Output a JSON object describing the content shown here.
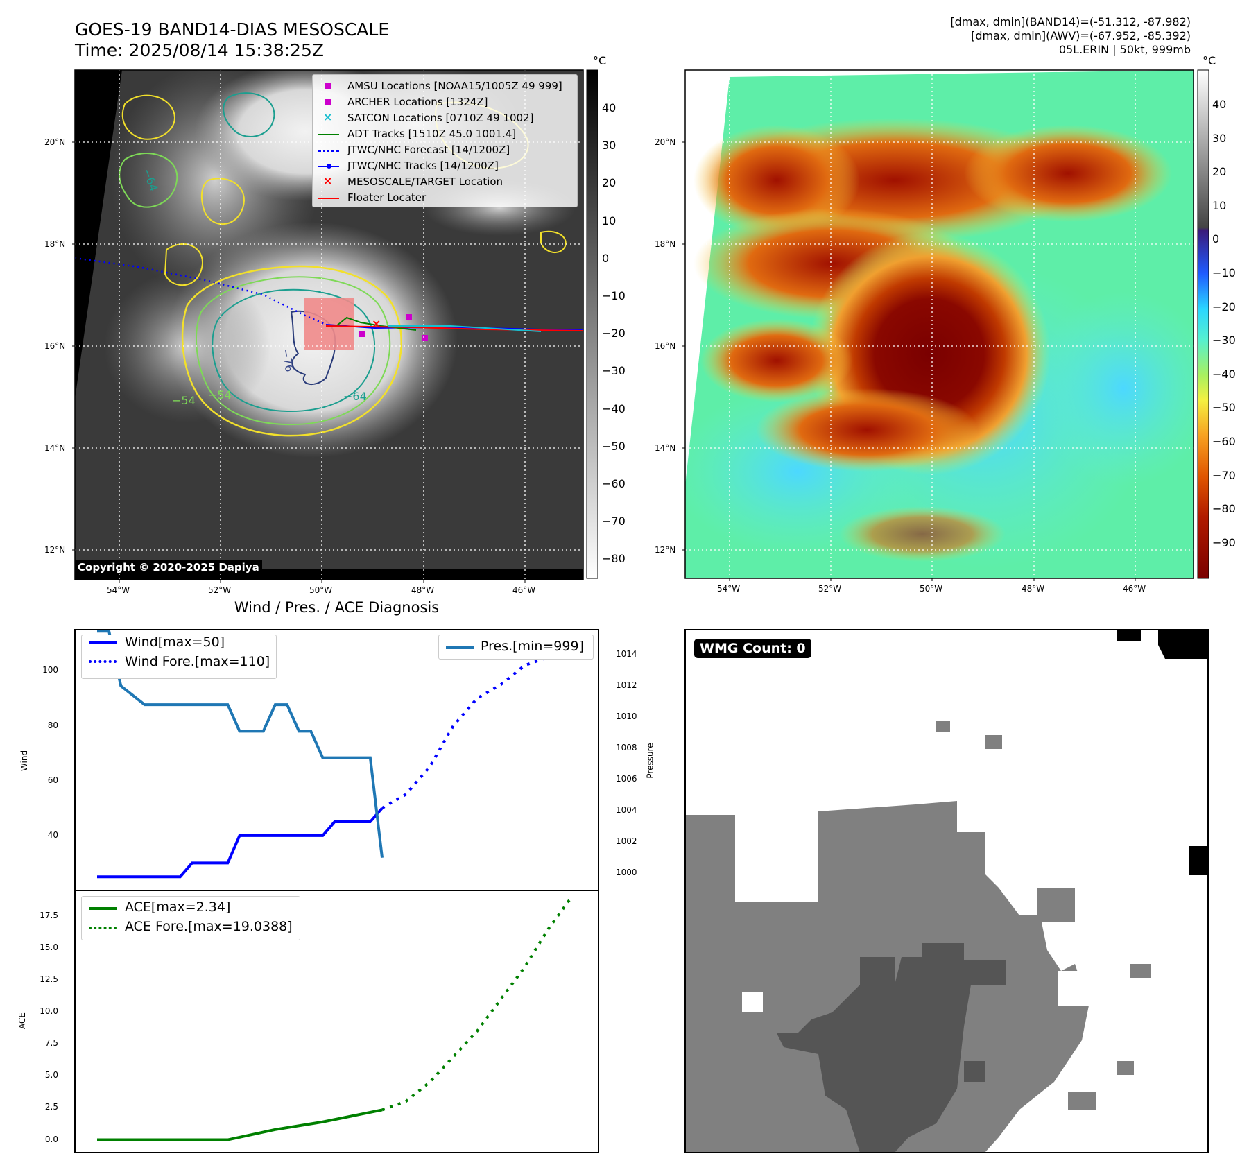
{
  "header": {
    "title_line1": "GOES-19 BAND14-DIAS MESOSCALE",
    "title_line2": "Time: 2025/08/14 15:38:25Z",
    "info_line1": "[dmax, dmin](BAND14)=(-51.312, -87.982)",
    "info_line2": "[dmax, dmin](AWV)=(-67.952, -85.392)",
    "info_line3": "05L.ERIN | 50kt, 999mb"
  },
  "map_axes": {
    "lat_ticks": [
      "20°N",
      "18°N",
      "16°N",
      "14°N",
      "12°N"
    ],
    "lon_ticks": [
      "54°W",
      "52°W",
      "50°W",
      "48°W",
      "46°W"
    ]
  },
  "ir_panel": {
    "colorbar_unit": "°C",
    "colorbar_ticks": [
      "40",
      "30",
      "20",
      "10",
      "0",
      "−10",
      "−20",
      "−30",
      "−40",
      "−50",
      "−60",
      "−70",
      "−80"
    ],
    "contour_labels": [
      "−76",
      "−64",
      "−54",
      "−54",
      "−64"
    ],
    "copyright": "Copyright © 2020-2025 Dapiya",
    "legend": [
      {
        "label": "AMSU Locations [NOAA15/1005Z 49 999]",
        "color": "#cc00cc",
        "marker": "square"
      },
      {
        "label": "ARCHER Locations [1324Z]",
        "color": "#cc00cc",
        "marker": "square"
      },
      {
        "label": "SATCON Locations [0710Z 49 1002]",
        "color": "#17becf",
        "marker": "x"
      },
      {
        "label": "ADT Tracks [1510Z 45.0 1001.4]",
        "color": "#008000",
        "marker": "line"
      },
      {
        "label": "JTWC/NHC Forecast [14/1200Z]",
        "color": "#0000ff",
        "marker": "dotted"
      },
      {
        "label": "JTWC/NHC Tracks [14/1200Z]",
        "color": "#0000ff",
        "marker": "line-dot"
      },
      {
        "label": "MESOSCALE/TARGET Location",
        "color": "#ff0000",
        "marker": "x"
      },
      {
        "label": "Floater Locater",
        "color": "#ff0000",
        "marker": "line"
      }
    ]
  },
  "dias_panel": {
    "colorbar_unit": "°C",
    "colorbar_ticks": [
      "40",
      "30",
      "20",
      "10",
      "0",
      "−10",
      "−20",
      "−30",
      "−40",
      "−50",
      "−60",
      "−70",
      "−80",
      "−90"
    ]
  },
  "wmg_panel": {
    "badge": "WMG Count: 0"
  },
  "chart_data": [
    {
      "type": "line",
      "title": "Wind / Pres. / ACE Diagnosis",
      "ylabel": "Wind",
      "y2label": "Pressure",
      "ylim": [
        20,
        115
      ],
      "y2lim": [
        998.9,
        1015.6
      ],
      "yticks": [
        "100",
        "80",
        "60",
        "40"
      ],
      "y2ticks": [
        "1014",
        "1012",
        "1010",
        "1008",
        "1006",
        "1004",
        "1002",
        "1000"
      ],
      "x": [
        0,
        1,
        2,
        3,
        4,
        5,
        6,
        7,
        8,
        9,
        10,
        11,
        12,
        13,
        14,
        15,
        16,
        17,
        18,
        19,
        20,
        21,
        22,
        23,
        24,
        25,
        26,
        27,
        28,
        29,
        30,
        31,
        32,
        33,
        34,
        35,
        36,
        37,
        38,
        39,
        40
      ],
      "series": [
        {
          "name": "Wind[max=50]",
          "axis": "left",
          "style": "solid",
          "color": "#0000ff",
          "x": [
            0,
            7,
            8,
            11,
            12,
            19,
            20,
            23,
            24
          ],
          "values": [
            25,
            25,
            30,
            30,
            40,
            40,
            45,
            45,
            50
          ]
        },
        {
          "name": "Wind Fore.[max=110]",
          "axis": "left",
          "style": "dotted",
          "color": "#0000ff",
          "x": [
            24,
            26,
            28,
            30,
            32,
            34,
            36,
            38,
            40
          ],
          "values": [
            50,
            55,
            65,
            80,
            90,
            95,
            102,
            105,
            105
          ]
        },
        {
          "name": "Pres.[min=999]",
          "axis": "right",
          "style": "solid",
          "color": "#1f77b4",
          "x": [
            0,
            1,
            2,
            4,
            11,
            12,
            14,
            15,
            16,
            17,
            18,
            19,
            20,
            22,
            23,
            24
          ],
          "values": [
            1015.5,
            1015.5,
            1012,
            1010.8,
            1010.8,
            1009.1,
            1009.1,
            1010.8,
            1010.8,
            1009.1,
            1009.1,
            1007.4,
            1007.4,
            1007.4,
            1007.4,
            1001
          ]
        }
      ],
      "legend_left": [
        "Wind[max=50]",
        "Wind Fore.[max=110]"
      ],
      "legend_right": [
        "Pres.[min=999]"
      ]
    },
    {
      "type": "line",
      "ylabel": "ACE",
      "ylim": [
        -1,
        19.5
      ],
      "yticks": [
        "17.5",
        "15.0",
        "12.5",
        "10.0",
        "7.5",
        "5.0",
        "2.5",
        "0.0"
      ],
      "series": [
        {
          "name": "ACE[max=2.34]",
          "style": "solid",
          "color": "#008000",
          "x": [
            0,
            11,
            15,
            19,
            24
          ],
          "values": [
            0,
            0,
            0.8,
            1.4,
            2.34
          ]
        },
        {
          "name": "ACE Fore.[max=19.0388]",
          "style": "dotted",
          "color": "#008000",
          "x": [
            24,
            26,
            28,
            30,
            32,
            34,
            36,
            38,
            40
          ],
          "values": [
            2.34,
            3.0,
            4.5,
            6.5,
            8.5,
            11,
            13.5,
            16.5,
            19.0388
          ]
        }
      ],
      "legend": [
        "ACE[max=2.34]",
        "ACE Fore.[max=19.0388]"
      ]
    }
  ]
}
